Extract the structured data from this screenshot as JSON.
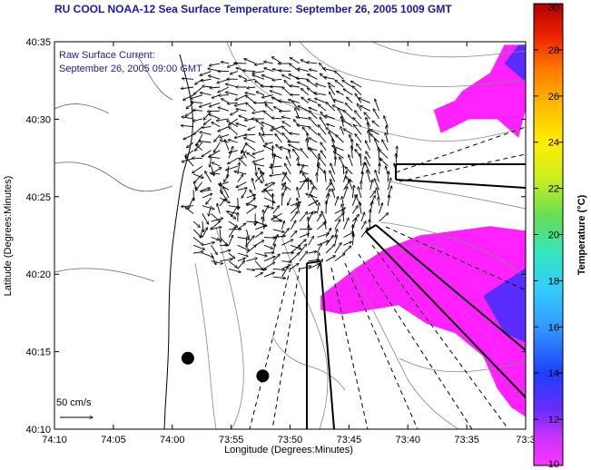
{
  "chart_data": {
    "type": "vector-field-map",
    "title": "RU COOL  NOAA-12  Sea Surface Temperature:  September 26, 2005 1009 GMT",
    "xlabel": "Longitude (Degrees:Minutes)",
    "ylabel": "Latitude (Degrees:Minutes)",
    "xlim": [
      -74.1667,
      -73.5
    ],
    "ylim": [
      40.1667,
      40.5833
    ],
    "x_ticks": [
      {
        "value": -74.1667,
        "label": "74:10"
      },
      {
        "value": -74.0833,
        "label": "74:05"
      },
      {
        "value": -74.0,
        "label": "74:00"
      },
      {
        "value": -73.9167,
        "label": "73:55"
      },
      {
        "value": -73.8333,
        "label": "73:50"
      },
      {
        "value": -73.75,
        "label": "73:45"
      },
      {
        "value": -73.6667,
        "label": "73:40"
      },
      {
        "value": -73.5833,
        "label": "73:35"
      },
      {
        "value": -73.5,
        "label": "73:3"
      }
    ],
    "y_ticks": [
      {
        "value": 40.1667,
        "label": "40:10"
      },
      {
        "value": 40.25,
        "label": "40:15"
      },
      {
        "value": 40.3333,
        "label": "40:20"
      },
      {
        "value": 40.4167,
        "label": "40:25"
      },
      {
        "value": 40.5,
        "label": "40:30"
      },
      {
        "value": 40.5833,
        "label": "40:35"
      }
    ],
    "annotation_lines": [
      "Raw Surface Current:",
      "September 26, 2005 09:00 GMT"
    ],
    "scale_label": "50 cm/s",
    "colorbar": {
      "label": "Temperature (°C)",
      "range": [
        10,
        30
      ],
      "ticks": [
        10,
        12,
        14,
        16,
        18,
        20,
        22,
        24,
        26,
        28,
        30
      ]
    },
    "markers": [
      {
        "lon": -73.978,
        "lat": 40.243
      },
      {
        "lon": -73.872,
        "lat": 40.224
      }
    ],
    "sst_regions": [
      {
        "temp_c": 11,
        "points": [
          [
            -73.62,
            40.485
          ],
          [
            -73.58,
            40.5
          ],
          [
            -73.54,
            40.5
          ],
          [
            -73.51,
            40.48
          ],
          [
            -73.5,
            40.51
          ],
          [
            -73.5,
            40.58
          ],
          [
            -73.53,
            40.58
          ],
          [
            -73.55,
            40.55
          ],
          [
            -73.59,
            40.53
          ],
          [
            -73.6,
            40.52
          ],
          [
            -73.63,
            40.51
          ]
        ]
      },
      {
        "temp_c": 11,
        "points": [
          [
            -73.79,
            40.31
          ],
          [
            -73.74,
            40.34
          ],
          [
            -73.7,
            40.36
          ],
          [
            -73.65,
            40.375
          ],
          [
            -73.6,
            40.38
          ],
          [
            -73.55,
            40.385
          ],
          [
            -73.5,
            40.38
          ],
          [
            -73.5,
            40.18
          ],
          [
            -73.52,
            40.19
          ],
          [
            -73.54,
            40.21
          ],
          [
            -73.56,
            40.245
          ],
          [
            -73.6,
            40.27
          ],
          [
            -73.64,
            40.28
          ],
          [
            -73.68,
            40.3
          ],
          [
            -73.72,
            40.295
          ],
          [
            -73.76,
            40.29
          ],
          [
            -73.79,
            40.295
          ]
        ]
      }
    ],
    "sst_cold_regions": [
      {
        "temp_c": 12.5,
        "points": [
          [
            -73.53,
            40.56
          ],
          [
            -73.51,
            40.58
          ],
          [
            -73.5,
            40.58
          ],
          [
            -73.5,
            40.54
          ]
        ]
      },
      {
        "temp_c": 12.5,
        "points": [
          [
            -73.56,
            40.31
          ],
          [
            -73.52,
            40.33
          ],
          [
            -73.5,
            40.34
          ],
          [
            -73.5,
            40.26
          ],
          [
            -73.53,
            40.27
          ]
        ]
      }
    ],
    "current_field": {
      "center": [
        -73.86,
        40.45
      ],
      "lon_range": [
        -73.97,
        -73.65
      ],
      "lat_range": [
        40.33,
        40.56
      ],
      "vector_scale_cm_s": 50,
      "vectors": "eddy"
    }
  }
}
